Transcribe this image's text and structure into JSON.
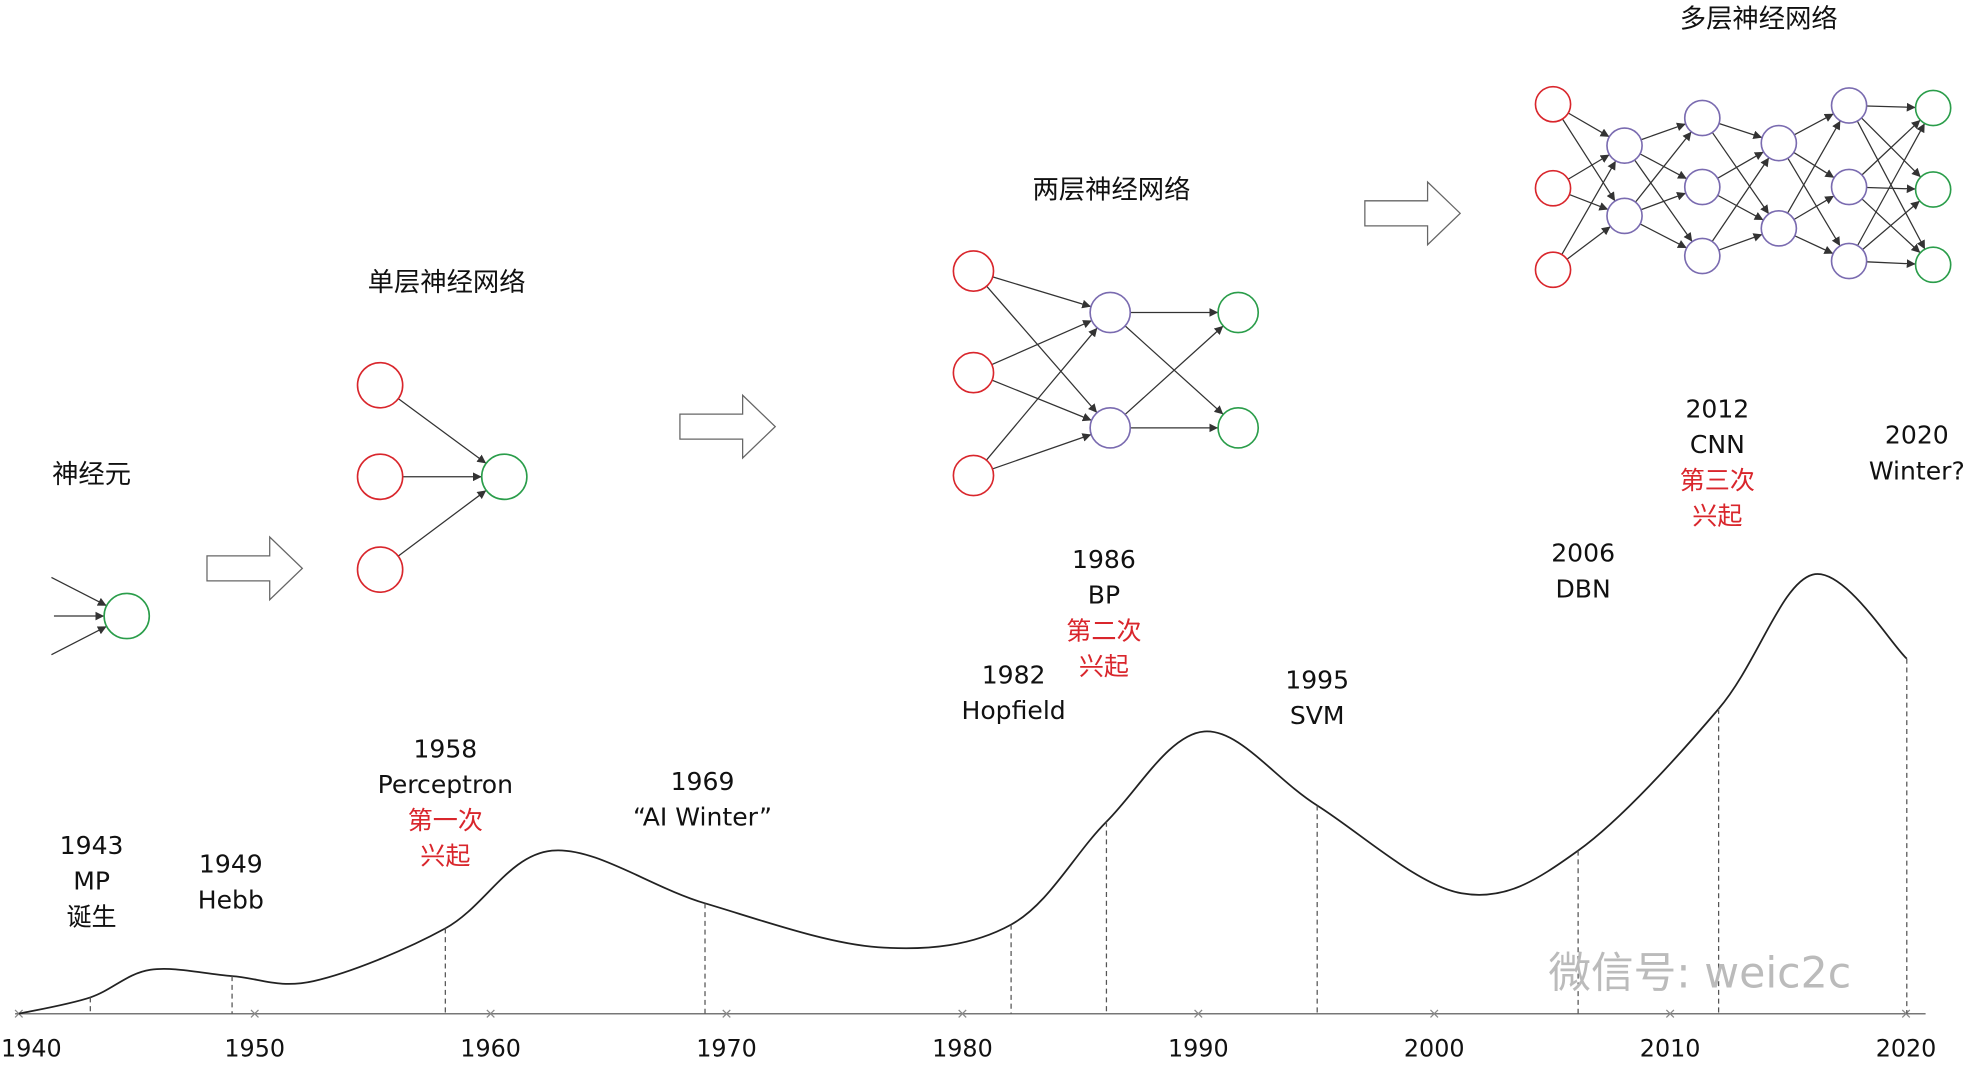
{
  "stages": [
    "神经元",
    "单层神经网络",
    "两层神经网络",
    "多层神经网络"
  ],
  "timeline": [
    "1940",
    "1950",
    "1960",
    "1970",
    "1980",
    "1990",
    "2000",
    "2010",
    "2020"
  ],
  "events": [
    {
      "lines": [
        "1943",
        "MP",
        "诞生"
      ],
      "surge": []
    },
    {
      "lines": [
        "1949",
        "Hebb"
      ],
      "surge": []
    },
    {
      "lines": [
        "1958",
        "Perceptron"
      ],
      "surge": [
        "第一次",
        "兴起"
      ]
    },
    {
      "lines": [
        "1969",
        "“AI Winter”"
      ],
      "surge": []
    },
    {
      "lines": [
        "1982",
        "Hopfield"
      ],
      "surge": []
    },
    {
      "lines": [
        "1986",
        "BP"
      ],
      "surge": [
        "第二次",
        "兴起"
      ]
    },
    {
      "lines": [
        "1995",
        "SVM"
      ],
      "surge": []
    },
    {
      "lines": [
        "2006",
        "DBN"
      ],
      "surge": []
    },
    {
      "lines": [
        "2012",
        "CNN"
      ],
      "surge": [
        "第三次",
        "兴起"
      ]
    },
    {
      "lines": [
        "2020",
        "Winter?"
      ],
      "surge": []
    }
  ],
  "watermark": "微信号: weic2c"
}
